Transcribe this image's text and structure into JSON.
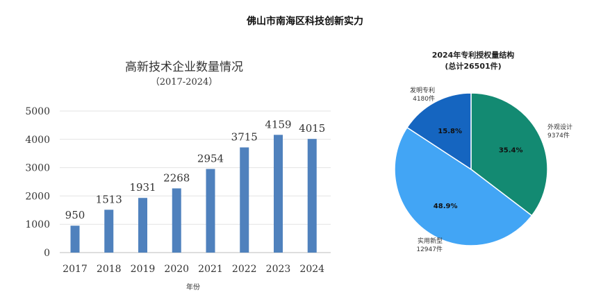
{
  "page_title": "佛山市南海区科技创新实力",
  "chart_data": [
    {
      "type": "bar",
      "title": "高新技术企业数量情况",
      "subtitle": "（2017-2024）",
      "xlabel": "年份",
      "ylabel": "",
      "categories": [
        "2017",
        "2018",
        "2019",
        "2020",
        "2021",
        "2022",
        "2023",
        "2024"
      ],
      "values": [
        950,
        1513,
        1931,
        2268,
        2954,
        3715,
        4159,
        4015
      ],
      "data_labels": [
        "950",
        "1513",
        "1931",
        "2268",
        "2954",
        "3715",
        "4159",
        "4015"
      ],
      "ylim": [
        0,
        5000
      ],
      "yticks": [
        "0",
        "1000",
        "2000",
        "3000",
        "4000",
        "5000"
      ],
      "grid": true,
      "bar_color": "#4F81BD"
    },
    {
      "type": "pie",
      "title": "2024年专利授权量结构",
      "subtitle": "(总计26501件)",
      "total": 26501,
      "slices": [
        {
          "name": "外观设计",
          "value": 9374,
          "value_label": "9374件",
          "percent_label": "35.4%",
          "color": "#138A72"
        },
        {
          "name": "实用新型",
          "value": 12947,
          "value_label": "12947件",
          "percent_label": "48.9%",
          "color": "#42A5F5"
        },
        {
          "name": "发明专利",
          "value": 4180,
          "value_label": "4180件",
          "percent_label": "15.8%",
          "color": "#1565C0"
        }
      ]
    }
  ]
}
